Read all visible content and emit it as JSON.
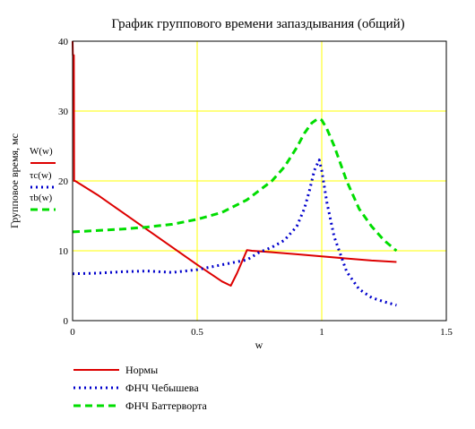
{
  "chart_data": {
    "type": "line",
    "title": "График группового времени запаздывания (общий)",
    "xlabel": "w",
    "ylabel": "Групповое время, мс",
    "xlim": [
      0,
      1.5
    ],
    "ylim": [
      0,
      40
    ],
    "xticks": [
      "0",
      "0.5",
      "1",
      "1.5"
    ],
    "yticks": [
      "0",
      "10",
      "20",
      "30",
      "40"
    ],
    "grid": true,
    "grid_color": "#ffff00",
    "series": [
      {
        "trace_label": "W(w)",
        "name": "Нормы",
        "color": "#dd0000",
        "style": "solid",
        "x": [
          0.0,
          0.001,
          0.003,
          0.005,
          0.006,
          0.01,
          0.1,
          0.2,
          0.3,
          0.4,
          0.5,
          0.6,
          0.635,
          0.66,
          0.7,
          0.72,
          0.8,
          0.9,
          1.0,
          1.1,
          1.2,
          1.3
        ],
        "y": [
          40,
          38,
          38,
          38,
          20,
          20,
          18.0,
          15.5,
          13.0,
          10.5,
          8.0,
          5.6,
          5.0,
          6.8,
          10.1,
          10.0,
          9.8,
          9.5,
          9.2,
          8.9,
          8.6,
          8.4
        ]
      },
      {
        "trace_label": "τc(w)",
        "name": "ФНЧ Чебышева",
        "color": "#0000cc",
        "style": "dotted",
        "x": [
          0.0,
          0.1,
          0.2,
          0.3,
          0.4,
          0.5,
          0.6,
          0.7,
          0.75,
          0.8,
          0.85,
          0.9,
          0.93,
          0.95,
          0.97,
          0.99,
          1.0,
          1.02,
          1.05,
          1.1,
          1.15,
          1.2,
          1.25,
          1.3
        ],
        "y": [
          6.7,
          6.8,
          7.0,
          7.1,
          6.9,
          7.3,
          8.0,
          8.7,
          9.8,
          10.5,
          11.5,
          13.5,
          16.0,
          18.5,
          21.5,
          23.0,
          21.5,
          17.0,
          12.0,
          7.0,
          4.5,
          3.3,
          2.7,
          2.2
        ]
      },
      {
        "trace_label": "τb(w)",
        "name": "ФНЧ Баттерворта",
        "color": "#00dd00",
        "style": "dashed",
        "x": [
          0.0,
          0.1,
          0.2,
          0.3,
          0.4,
          0.5,
          0.6,
          0.7,
          0.8,
          0.85,
          0.9,
          0.93,
          0.96,
          0.98,
          0.99,
          1.0,
          1.02,
          1.05,
          1.1,
          1.15,
          1.2,
          1.25,
          1.3
        ],
        "y": [
          12.7,
          12.9,
          13.1,
          13.4,
          13.8,
          14.5,
          15.5,
          17.3,
          20.0,
          22.0,
          24.8,
          26.8,
          28.3,
          28.8,
          28.9,
          28.7,
          27.5,
          25.0,
          20.0,
          16.0,
          13.5,
          11.5,
          10.0
        ]
      }
    ]
  }
}
